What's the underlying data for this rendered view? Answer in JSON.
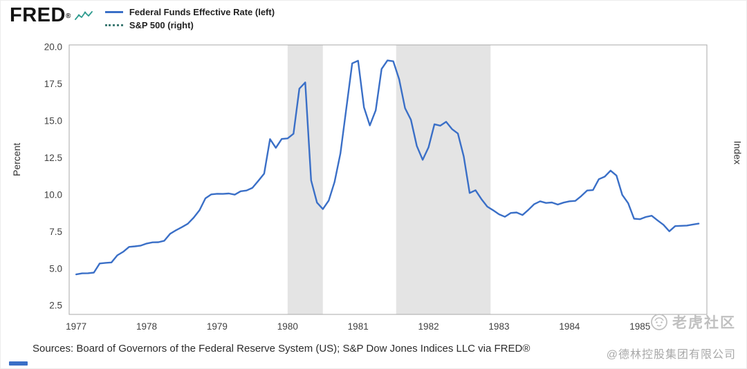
{
  "header": {
    "logo": "FRED",
    "registered": "®",
    "legend": [
      {
        "label": "Federal Funds Effective Rate (left)",
        "color": "#3a6fc7",
        "style": "solid"
      },
      {
        "label": "S&P 500 (right)",
        "color": "#3d7a73",
        "style": "dotted"
      }
    ]
  },
  "chart_data": {
    "type": "line",
    "title": "",
    "xlabel": "",
    "ylabel_left": "Percent",
    "ylabel_right": "Index",
    "x_start": 1977.0,
    "x_step_months": 1,
    "xlim": [
      1976.9,
      1985.95
    ],
    "ylim": [
      1.9,
      20.15
    ],
    "yticks": [
      2.5,
      5.0,
      7.5,
      10.0,
      12.5,
      15.0,
      17.5,
      20.0
    ],
    "xticks": [
      1977,
      1978,
      1979,
      1980,
      1981,
      1982,
      1983,
      1984,
      1985
    ],
    "grid": false,
    "legend_position": "top-left",
    "line_color": "#3a6fc7",
    "band_color": "#e4e4e4",
    "frame_color": "#a8a8a8",
    "recession_bands": [
      {
        "start": 1980.0,
        "end": 1980.5
      },
      {
        "start": 1981.54,
        "end": 1982.88
      }
    ],
    "series": [
      {
        "name": "Federal Funds Effective Rate",
        "unit": "Percent",
        "frequency": "monthly",
        "first_period": "1977-01",
        "last_period": "1985-11",
        "values": [
          4.61,
          4.68,
          4.69,
          4.73,
          5.35,
          5.39,
          5.42,
          5.9,
          6.14,
          6.47,
          6.51,
          6.56,
          6.7,
          6.78,
          6.79,
          6.89,
          7.36,
          7.6,
          7.81,
          8.04,
          8.45,
          8.96,
          9.76,
          10.03,
          10.07,
          10.06,
          10.09,
          10.01,
          10.24,
          10.29,
          10.47,
          10.94,
          11.43,
          13.77,
          13.18,
          13.78,
          13.82,
          14.13,
          17.19,
          17.61,
          10.98,
          9.47,
          9.03,
          9.61,
          10.87,
          12.81,
          15.85,
          18.9,
          19.08,
          15.93,
          14.7,
          15.72,
          18.52,
          19.1,
          19.04,
          17.82,
          15.87,
          15.08,
          13.31,
          12.37,
          13.22,
          14.78,
          14.68,
          14.94,
          14.45,
          14.15,
          12.59,
          10.12,
          10.31,
          9.71,
          9.2,
          8.95,
          8.68,
          8.51,
          8.77,
          8.8,
          8.63,
          8.98,
          9.37,
          9.56,
          9.45,
          9.48,
          9.34,
          9.47,
          9.56,
          9.59,
          9.91,
          10.29,
          10.32,
          11.06,
          11.23,
          11.64,
          11.3,
          9.99,
          9.43,
          8.38,
          8.35,
          8.5,
          8.58,
          8.27,
          7.97,
          7.53,
          7.88,
          7.9,
          7.92,
          7.99,
          8.05
        ]
      }
    ]
  },
  "footer": {
    "sources": "Sources: Board of Governors of the Federal Reserve System (US); S&P Dow Jones Indices LLC via FRED®"
  },
  "watermark": {
    "community": "老虎社区",
    "company": "@德林控股集团有限公司"
  }
}
